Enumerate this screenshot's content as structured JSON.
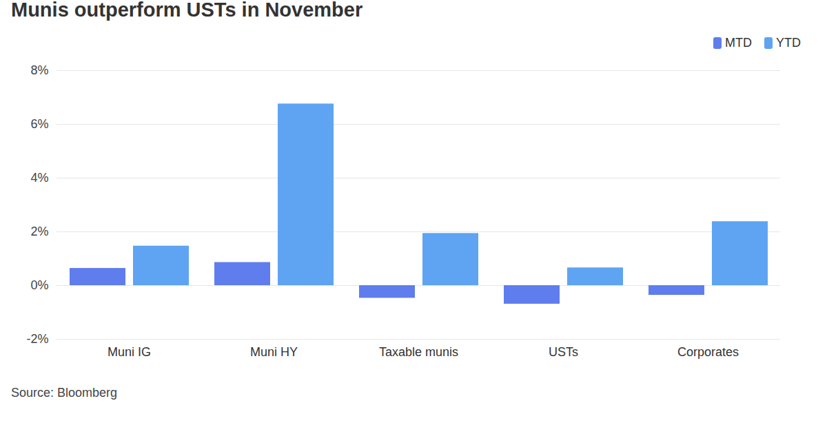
{
  "chart_data": {
    "type": "bar",
    "title": "Munis outperform USTs in November",
    "caption": "Source: Bloomberg",
    "categories": [
      "Muni IG",
      "Muni HY",
      "Taxable munis",
      "USTs",
      "Corporates"
    ],
    "series": [
      {
        "name": "MTD",
        "color": "#5f7ded",
        "values": [
          0.64,
          0.86,
          -0.47,
          -0.69,
          -0.36
        ]
      },
      {
        "name": "YTD",
        "color": "#5ea4f2",
        "values": [
          1.47,
          6.76,
          1.94,
          0.66,
          2.38
        ]
      }
    ],
    "ylim": [
      -2,
      8
    ],
    "yticks": [
      {
        "value": -2,
        "label": "-2%"
      },
      {
        "value": 0,
        "label": "0%"
      },
      {
        "value": 2,
        "label": "2%"
      },
      {
        "value": 4,
        "label": "4%"
      },
      {
        "value": 6,
        "label": "6%"
      },
      {
        "value": 8,
        "label": "8%"
      }
    ],
    "grid": true,
    "legend": "top-right"
  }
}
